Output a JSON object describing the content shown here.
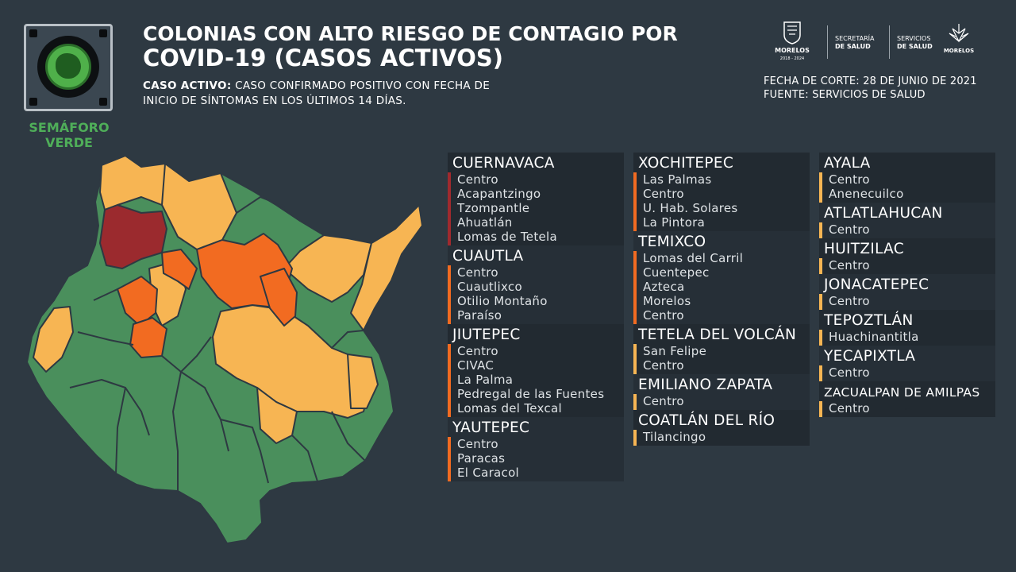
{
  "semaforo": {
    "label_line1": "SEMÁFORO",
    "label_line2": "VERDE",
    "color": "#4fae59"
  },
  "header": {
    "title_line1": "COLONIAS CON ALTO RIESGO DE CONTAGIO POR",
    "title_line2": "COVID-19 (CASOS ACTIVOS)",
    "definition_label": "CASO ACTIVO:",
    "definition_text_1": "CASO CONFIRMADO POSITIVO CON FECHA DE",
    "definition_text_2": "INICIO DE SÍNTOMAS EN LOS ÚLTIMOS 14 DÍAS.",
    "fecha_corte": "FECHA DE CORTE: 28 DE JUNIO DE 2021",
    "fuente": "FUENTE: SERVICIOS DE SALUD"
  },
  "logos": {
    "morelos_gov": "MORELOS",
    "morelos_years": "2018 - 2024",
    "secretaria_1": "SECRETARÍA",
    "secretaria_2": "DE SALUD",
    "servicios_1": "SERVICIOS",
    "servicios_2": "DE SALUD",
    "morelos_brand": "MORELOS"
  },
  "colors": {
    "red": "#9b2a2e",
    "orange": "#f26b21",
    "yellow": "#f7b553",
    "green": "#4a8f5c",
    "background": "#2e3942"
  },
  "columns": [
    [
      {
        "name": "CUERNAVACA",
        "color": "#a02a2e",
        "items": [
          "Centro",
          "Acapantzingo",
          "Tzompantle",
          "Ahuatlán",
          "Lomas de Tetela"
        ]
      },
      {
        "name": "CUAUTLA",
        "color": "#f26b21",
        "items": [
          "Centro",
          "Cuautlixco",
          "Otilio Montaño",
          "Paraíso"
        ]
      },
      {
        "name": "JIUTEPEC",
        "color": "#f26b21",
        "items": [
          "Centro",
          "CIVAC",
          "La Palma",
          "Pedregal de las Fuentes",
          "Lomas del Texcal"
        ]
      },
      {
        "name": "YAUTEPEC",
        "color": "#f26b21",
        "items": [
          "Centro",
          "Paracas",
          "El Caracol"
        ]
      }
    ],
    [
      {
        "name": "XOCHITEPEC",
        "color": "#f26b21",
        "items": [
          "Las Palmas",
          "Centro",
          "U. Hab. Solares",
          "La Pintora"
        ]
      },
      {
        "name": "TEMIXCO",
        "color": "#f26b21",
        "items": [
          "Lomas del Carril",
          "Cuentepec",
          "Azteca",
          "Morelos",
          "Centro"
        ]
      },
      {
        "name": "TETELA DEL VOLCÁN",
        "color": "#f7b553",
        "items": [
          "San Felipe",
          "Centro"
        ]
      },
      {
        "name": "EMILIANO ZAPATA",
        "color": "#f7b553",
        "items": [
          "Centro"
        ]
      },
      {
        "name": "COATLÁN DEL RÍO",
        "color": "#f7b553",
        "items": [
          "Tilancingo"
        ]
      }
    ],
    [
      {
        "name": "AYALA",
        "color": "#f7b553",
        "items": [
          "Centro",
          "Anenecuilco"
        ]
      },
      {
        "name": "ATLATLAHUCAN",
        "color": "#f7b553",
        "items": [
          "Centro"
        ]
      },
      {
        "name": "HUITZILAC",
        "color": "#f7b553",
        "items": [
          "Centro"
        ]
      },
      {
        "name": "JONACATEPEC",
        "color": "#f7b553",
        "items": [
          "Centro"
        ]
      },
      {
        "name": "TEPOZTLÁN",
        "color": "#f7b553",
        "items": [
          "Huachinantitla"
        ]
      },
      {
        "name": "YECAPIXTLA",
        "color": "#f7b553",
        "items": [
          "Centro"
        ]
      },
      {
        "name": "ZACUALPAN DE AMILPAS",
        "color": "#f7b553",
        "items": [
          "Centro"
        ]
      }
    ]
  ]
}
